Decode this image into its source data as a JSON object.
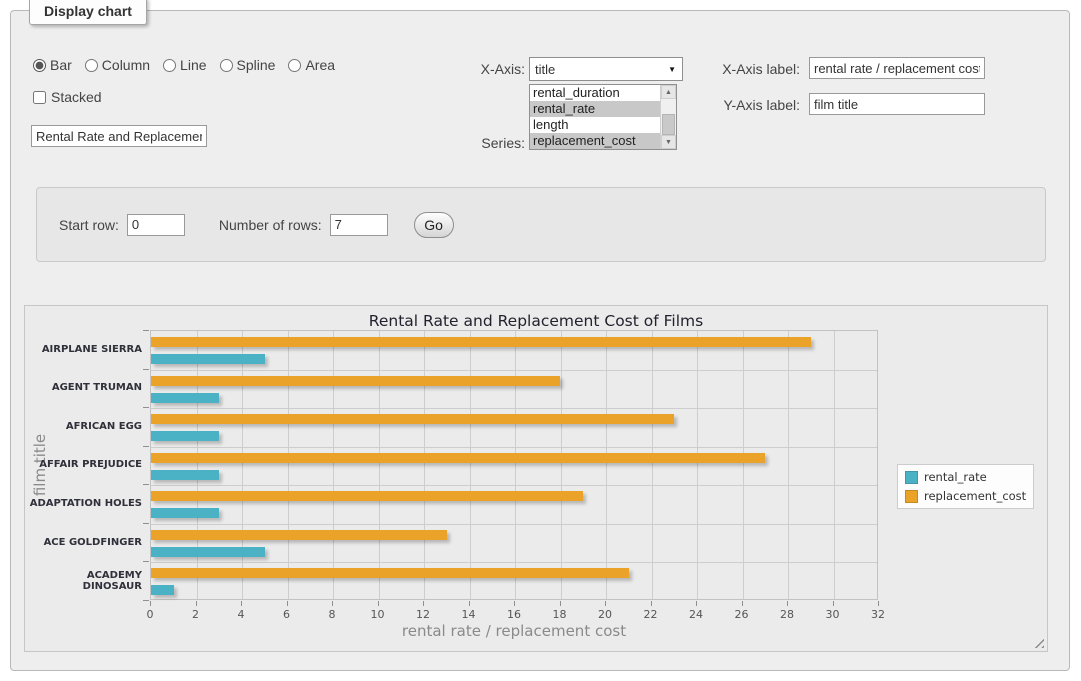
{
  "panel": {
    "title": "Display chart"
  },
  "controls": {
    "chart_type": {
      "options": [
        "Bar",
        "Column",
        "Line",
        "Spline",
        "Area"
      ],
      "selected": "Bar"
    },
    "stacked": {
      "label": "Stacked",
      "checked": false
    },
    "title_value": "Rental Rate and Replacement Cost of Films",
    "x_axis": {
      "label": "X-Axis:",
      "value": "title"
    },
    "series": {
      "label": "Series:",
      "options": [
        "rental_duration",
        "rental_rate",
        "length",
        "replacement_cost"
      ],
      "selected": [
        "rental_rate",
        "replacement_cost"
      ]
    },
    "x_axis_label": {
      "label": "X-Axis label:",
      "value": "rental rate / replacement cost"
    },
    "y_axis_label": {
      "label": "Y-Axis label:",
      "value": "film title"
    }
  },
  "row_controls": {
    "start_row_label": "Start row:",
    "start_row_value": "0",
    "num_rows_label": "Number of rows:",
    "num_rows_value": "7",
    "go_label": "Go"
  },
  "chart_data": {
    "type": "bar",
    "orientation": "horizontal",
    "title": "Rental Rate and Replacement Cost of Films",
    "categories": [
      "AIRPLANE SIERRA",
      "AGENT TRUMAN",
      "AFRICAN EGG",
      "AFFAIR PREJUDICE",
      "ADAPTATION HOLES",
      "ACE GOLDFINGER",
      "ACADEMY DINOSAUR"
    ],
    "series": [
      {
        "name": "rental_rate",
        "color": "#4bb2c5",
        "values": [
          4.99,
          2.99,
          2.99,
          2.99,
          2.99,
          4.99,
          0.99
        ]
      },
      {
        "name": "replacement_cost",
        "color": "#eaa228",
        "values": [
          28.99,
          17.99,
          22.99,
          26.99,
          18.99,
          12.99,
          20.99
        ]
      }
    ],
    "xlabel": "rental rate / replacement cost",
    "ylabel": "film title",
    "xlim": [
      0,
      32
    ],
    "xticks": [
      0,
      2,
      4,
      6,
      8,
      10,
      12,
      14,
      16,
      18,
      20,
      22,
      24,
      26,
      28,
      30,
      32
    ],
    "grid": true,
    "legend_position": "right"
  }
}
